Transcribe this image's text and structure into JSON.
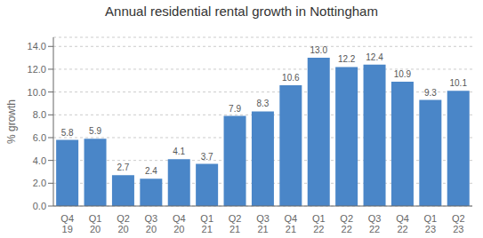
{
  "chart_data": {
    "type": "bar",
    "title": "Annual residential rental growth in Nottingham",
    "categories": [
      "Q4 19",
      "Q1 20",
      "Q2 20",
      "Q3 20",
      "Q4 20",
      "Q1 21",
      "Q2 21",
      "Q3 21",
      "Q4 21",
      "Q1 22",
      "Q2 22",
      "Q3 22",
      "Q4 22",
      "Q1 23",
      "Q2 23"
    ],
    "values": [
      5.8,
      5.9,
      2.7,
      2.4,
      4.1,
      3.7,
      7.9,
      8.3,
      10.6,
      13.0,
      12.2,
      12.4,
      10.9,
      9.3,
      10.1
    ],
    "value_labels": [
      "5.8",
      "5.9",
      "2.7",
      "2.4",
      "4.1",
      "3.7",
      "7.9",
      "8.3",
      "10.6",
      "13.0",
      "12.2",
      "12.4",
      "10.9",
      "9.3",
      "10.1"
    ],
    "data_labels": true,
    "color": "#4a86c8",
    "ylabel": "% growth",
    "ylim": [
      0,
      14.8
    ],
    "yticks": [
      {
        "value": 0,
        "label": "0.0"
      },
      {
        "value": 2,
        "label": "2.0"
      },
      {
        "value": 4,
        "label": "4.0"
      },
      {
        "value": 6,
        "label": "6.0"
      },
      {
        "value": 8,
        "label": "8.0"
      },
      {
        "value": 10,
        "label": "10.0"
      },
      {
        "value": 12,
        "label": "12.0"
      },
      {
        "value": 14,
        "label": "14.0"
      }
    ],
    "grid": true
  }
}
